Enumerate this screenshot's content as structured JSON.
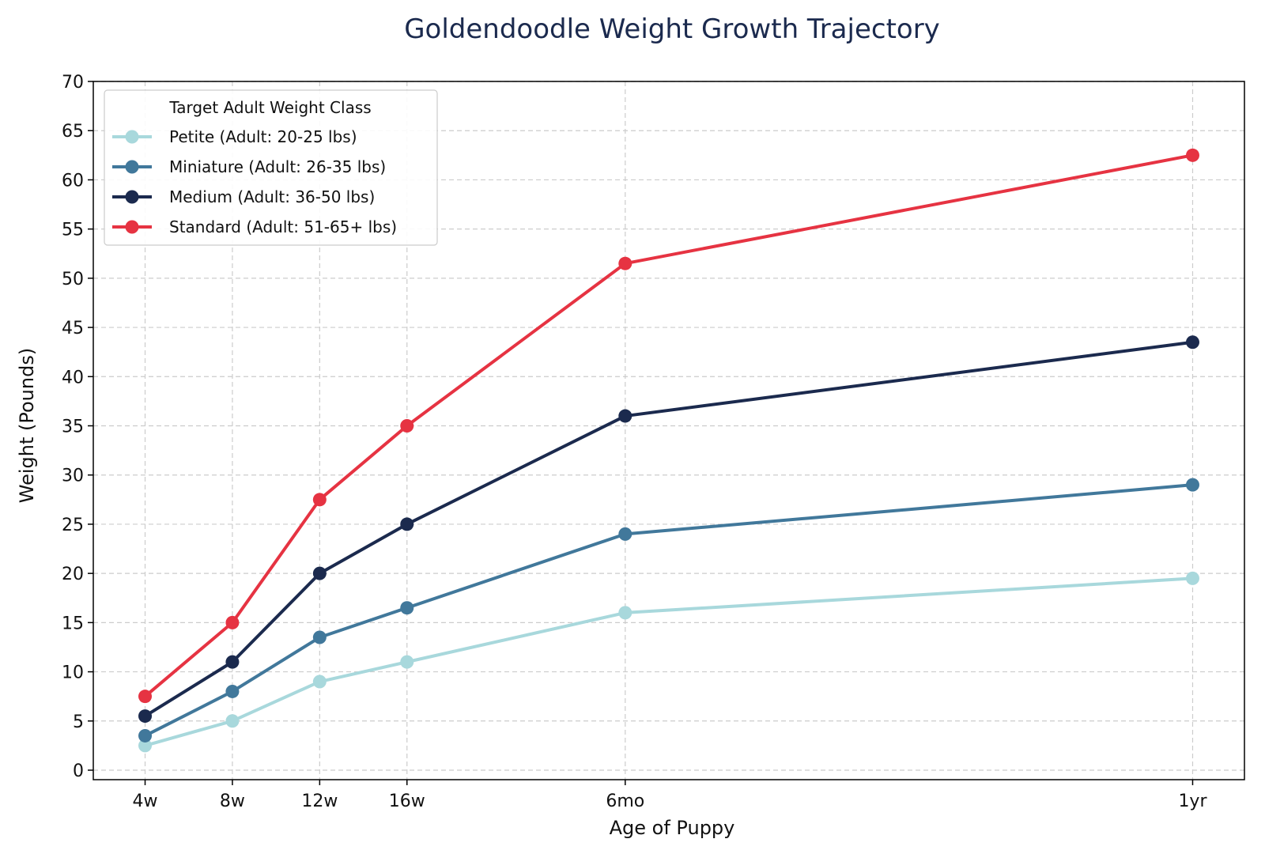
{
  "chart_data": {
    "type": "line",
    "title": "Goldendoodle Weight Growth Trajectory",
    "xlabel": "Age of Puppy",
    "ylabel": "Weight (Pounds)",
    "x_age_weeks": [
      4,
      8,
      12,
      16,
      26,
      52
    ],
    "x_tick_labels": [
      "4w",
      "8w",
      "12w",
      "16w",
      "6mo",
      "1yr"
    ],
    "ylim": [
      0,
      70
    ],
    "y_ticks": [
      0,
      5,
      10,
      15,
      20,
      25,
      30,
      35,
      40,
      45,
      50,
      55,
      60,
      65,
      70
    ],
    "grid": true,
    "legend": {
      "title": "Target Adult Weight Class",
      "placement": "top-left"
    },
    "series": [
      {
        "name": "Petite (Adult: 20-25 lbs)",
        "color": "#a8d8dc",
        "values": [
          2.5,
          5,
          9,
          11,
          16,
          19.5
        ]
      },
      {
        "name": "Miniature (Adult: 26-35 lbs)",
        "color": "#41789b",
        "values": [
          3.5,
          8,
          13.5,
          16.5,
          24,
          29
        ]
      },
      {
        "name": "Medium (Adult: 36-50 lbs)",
        "color": "#1b2a4e",
        "values": [
          5.5,
          11,
          20,
          25,
          36,
          43.5
        ]
      },
      {
        "name": "Standard (Adult: 51-65+ lbs)",
        "color": "#e63342",
        "values": [
          7.5,
          15,
          27.5,
          35,
          51.5,
          62.5
        ]
      }
    ]
  }
}
